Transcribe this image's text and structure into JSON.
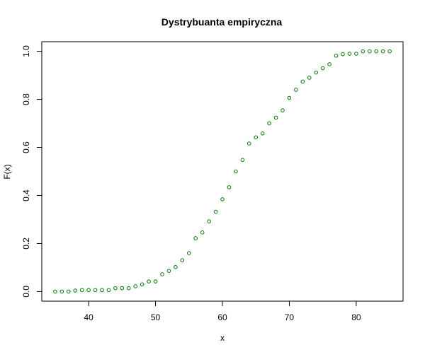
{
  "chart_data": {
    "type": "scatter",
    "title": "Dystrybuanta empiryczna",
    "xlabel": "x",
    "ylabel": "F(x)",
    "xlim": [
      33,
      87
    ],
    "ylim": [
      -0.04,
      1.04
    ],
    "x_ticks": [
      40,
      50,
      60,
      70,
      80
    ],
    "x_tick_labels": [
      "40",
      "50",
      "60",
      "70",
      "80"
    ],
    "y_ticks": [
      0.0,
      0.2,
      0.4,
      0.6,
      0.8,
      1.0
    ],
    "y_tick_labels": [
      "0.0",
      "0.2",
      "0.4",
      "0.6",
      "0.8",
      "1.0"
    ],
    "grid": false,
    "legend": "none",
    "marker": "open-circle",
    "marker_color": "#007a00",
    "series": [
      {
        "x": [
          35,
          36,
          37,
          38,
          39,
          40,
          41,
          42,
          43,
          44,
          45,
          46,
          47,
          48,
          49,
          50,
          51,
          52,
          53,
          54,
          55,
          56,
          57,
          58,
          59,
          60,
          61,
          62,
          63,
          64,
          65,
          66,
          67,
          68,
          69,
          70,
          71,
          72,
          73,
          74,
          75,
          76,
          77,
          78,
          79,
          80,
          81,
          82,
          83,
          84,
          85
        ],
        "y": [
          0.0,
          0.0,
          0.0,
          0.004,
          0.006,
          0.006,
          0.006,
          0.006,
          0.006,
          0.014,
          0.014,
          0.014,
          0.022,
          0.03,
          0.042,
          0.042,
          0.072,
          0.086,
          0.102,
          0.13,
          0.16,
          0.222,
          0.246,
          0.292,
          0.332,
          0.384,
          0.434,
          0.5,
          0.548,
          0.616,
          0.642,
          0.658,
          0.7,
          0.724,
          0.754,
          0.806,
          0.84,
          0.874,
          0.89,
          0.912,
          0.93,
          0.946,
          0.982,
          0.988,
          0.99,
          0.99,
          1.0,
          1.0,
          1.0,
          1.0,
          1.0
        ]
      }
    ]
  }
}
